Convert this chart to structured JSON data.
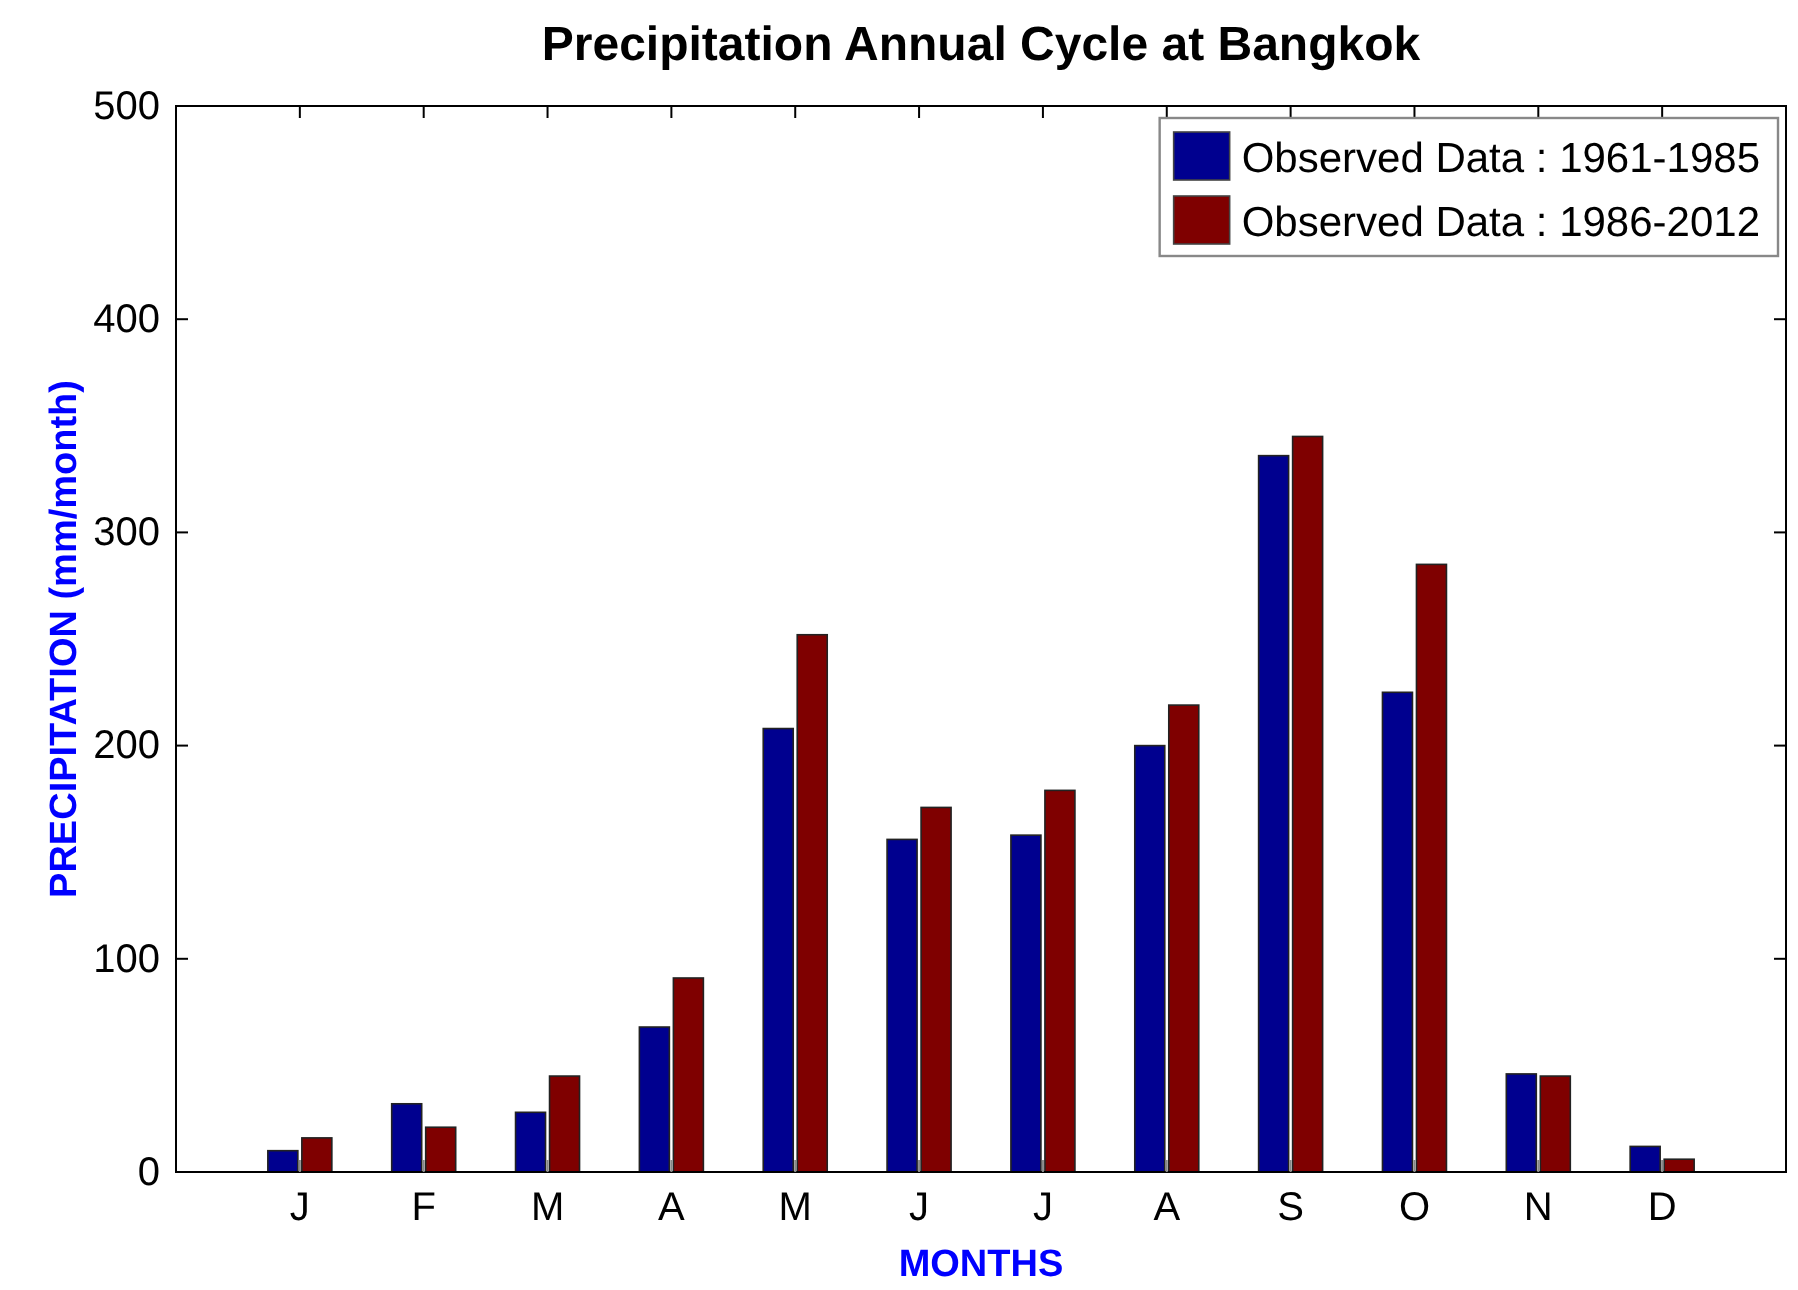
{
  "chart_data": {
    "type": "bar",
    "title": "Precipitation Annual Cycle at Bangkok",
    "xlabel": "MONTHS",
    "ylabel": "PRECIPITATION (mm/month)",
    "categories": [
      "J",
      "F",
      "M",
      "A",
      "M",
      "J",
      "J",
      "A",
      "S",
      "O",
      "N",
      "D"
    ],
    "series": [
      {
        "name": "Observed Data : 1961-1985",
        "color": "#00008f",
        "values": [
          10,
          32,
          28,
          68,
          208,
          156,
          158,
          200,
          336,
          225,
          46,
          12
        ]
      },
      {
        "name": "Observed Data : 1986-2012",
        "color": "#7f0000",
        "values": [
          16,
          21,
          45,
          91,
          252,
          171,
          179,
          219,
          345,
          285,
          45,
          6
        ]
      }
    ],
    "ylim": [
      0,
      500
    ],
    "yticks": [
      0,
      100,
      200,
      300,
      400,
      500
    ],
    "legend": "top right",
    "grid": false
  }
}
